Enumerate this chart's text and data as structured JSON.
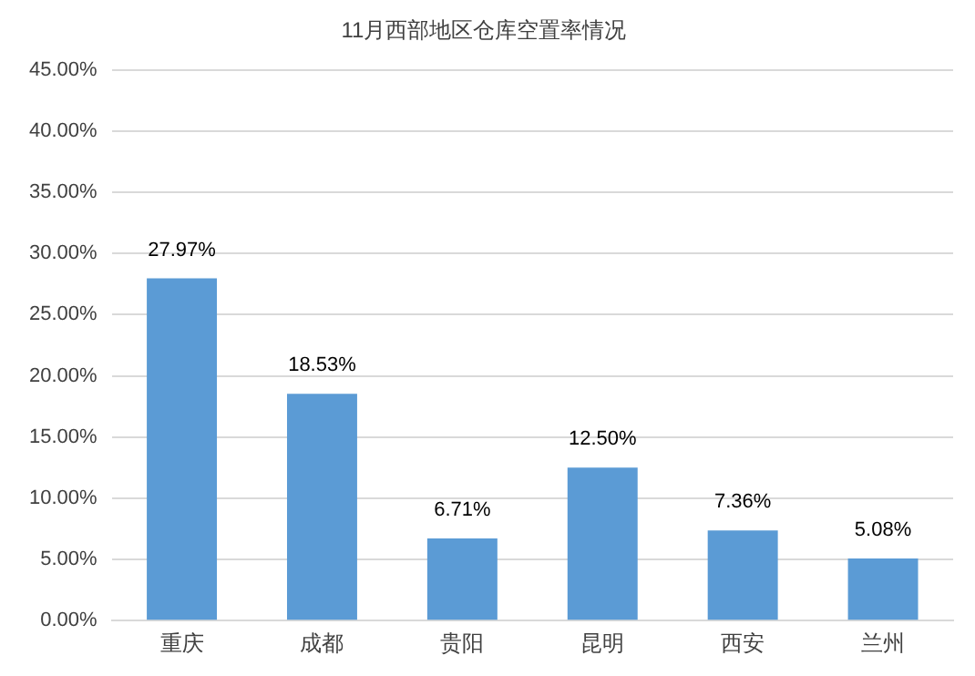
{
  "chart_data": {
    "type": "bar",
    "title": "11月西部地区仓库空置率情况",
    "categories": [
      "重庆",
      "成都",
      "贵阳",
      "昆明",
      "西安",
      "兰州"
    ],
    "values": [
      27.97,
      18.53,
      6.71,
      12.5,
      7.36,
      5.08
    ],
    "value_labels": [
      "27.97%",
      "18.53%",
      "6.71%",
      "12.50%",
      "7.36%",
      "5.08%"
    ],
    "color": "#5b9bd5",
    "ylim": [
      0,
      45
    ],
    "yticks": [
      {
        "value": 0,
        "label": "0.00%"
      },
      {
        "value": 5,
        "label": "5.00%"
      },
      {
        "value": 10,
        "label": "10.00%"
      },
      {
        "value": 15,
        "label": "15.00%"
      },
      {
        "value": 20,
        "label": "20.00%"
      },
      {
        "value": 25,
        "label": "25.00%"
      },
      {
        "value": 30,
        "label": "30.00%"
      },
      {
        "value": 35,
        "label": "35.00%"
      },
      {
        "value": 40,
        "label": "40.00%"
      },
      {
        "value": 45,
        "label": "45.00%"
      }
    ],
    "grid": "y",
    "legend": false
  }
}
